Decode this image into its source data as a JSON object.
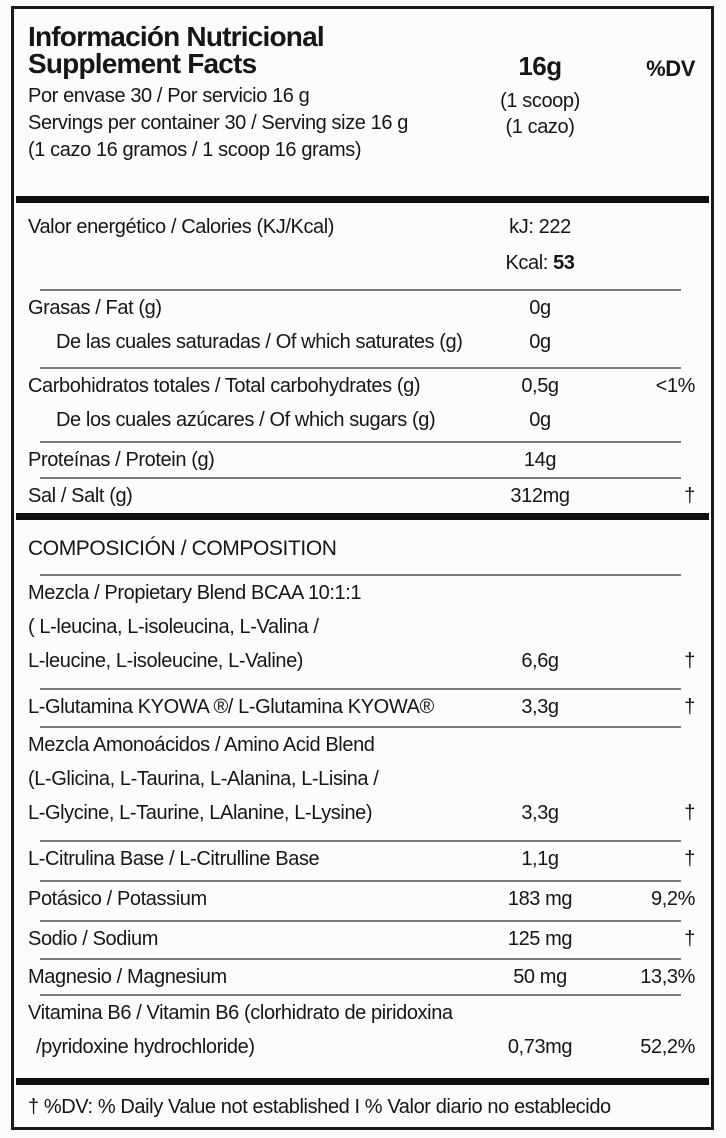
{
  "header": {
    "title_es": "Información Nutricional",
    "title_en": "Supplement Facts",
    "serving_size": "16g",
    "dv_header": "%DV",
    "serving_line_es": "Por envase 30 / Por servicio 16 g",
    "serving_line_en": "Servings per container 30 / Serving size 16 g",
    "serving_line_scoop": "(1 cazo 16 gramos / 1 scoop 16 grams)",
    "scoop_en": "(1 scoop)",
    "scoop_es": "(1 cazo)"
  },
  "nutrition": {
    "calories": {
      "label": "Valor energético / Calories (KJ/Kcal)",
      "kj": "kJ: 222",
      "kcal_prefix": "Kcal: ",
      "kcal_value": "53"
    },
    "fat": {
      "label": "Grasas / Fat (g)",
      "amount": "0g"
    },
    "saturates": {
      "label": "De las cuales saturadas / Of which saturates (g)",
      "amount": "0g"
    },
    "carbs": {
      "label": "Carbohidratos totales / Total carbohydrates (g)",
      "amount": "0,5g",
      "dv": "<1%"
    },
    "sugars": {
      "label": "De los cuales azúcares / Of which sugars (g)",
      "amount": "0g"
    },
    "protein": {
      "label": "Proteínas / Protein (g)",
      "amount": "14g"
    },
    "salt": {
      "label": "Sal / Salt (g)",
      "amount": "312mg",
      "dv": "†"
    }
  },
  "composition": {
    "header": "COMPOSICIÓN / COMPOSITION",
    "bcaa": {
      "lines": [
        "Mezcla / Propietary Blend BCAA 10:1:1",
        "( L-leucina, L-isoleucina, L-Valina /",
        "L-leucine, L-isoleucine, L-Valine)"
      ],
      "amount": "6,6g",
      "dv": "†"
    },
    "glutamine": {
      "label": "L-Glutamina KYOWA ®/ L-Glutamina KYOWA®",
      "amount": "3,3g",
      "dv": "†"
    },
    "amino_blend": {
      "lines": [
        "Mezcla Amonoácidos / Amino Acid Blend",
        "(L-Glicina, L-Taurina, L-Alanina, L-Lisina /",
        "L-Glycine, L-Taurine, LAlanine, L-Lysine)"
      ],
      "amount": "3,3g",
      "dv": "†"
    },
    "citrulline": {
      "label": "L-Citrulina Base / L-Citrulline Base",
      "amount": "1,1g",
      "dv": "†"
    },
    "potassium": {
      "label": "Potásico / Potassium",
      "amount": "183 mg",
      "dv": "9,2%"
    },
    "sodium": {
      "label": "Sodio / Sodium",
      "amount": "125 mg",
      "dv": "†"
    },
    "magnesium": {
      "label": "Magnesio / Magnesium",
      "amount": "50 mg",
      "dv": "13,3%"
    },
    "vitamin_b6": {
      "lines": [
        "Vitamina B6 / Vitamin B6 (clorhidrato de piridoxina",
        "/pyridoxine hydrochloride)"
      ],
      "amount": "0,73mg",
      "dv": "52,2%"
    }
  },
  "footer": {
    "note": "† %DV: % Daily Value not established I % Valor diario no establecido"
  }
}
